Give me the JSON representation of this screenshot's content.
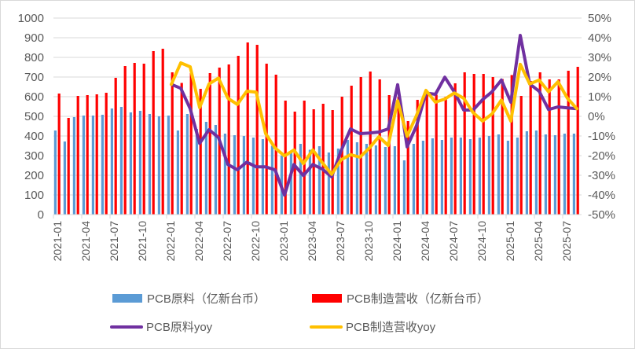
{
  "chart_data": {
    "type": "bar+line",
    "title": "",
    "x": [
      "2021-01",
      "2021-02",
      "2021-03",
      "2021-04",
      "2021-05",
      "2021-06",
      "2021-07",
      "2021-08",
      "2021-09",
      "2021-10",
      "2021-11",
      "2021-12",
      "2022-01",
      "2022-02",
      "2022-03",
      "2022-04",
      "2022-05",
      "2022-06",
      "2022-07",
      "2022-08",
      "2022-09",
      "2022-10",
      "2022-11",
      "2022-12",
      "2023-01",
      "2023-02",
      "2023-03",
      "2023-04",
      "2023-05",
      "2023-06",
      "2023-07",
      "2023-08",
      "2023-09",
      "2023-10",
      "2023-11",
      "2023-12",
      "2024-01",
      "2024-02",
      "2024-03",
      "2024-04",
      "2024-05",
      "2024-06",
      "2024-07",
      "2024-08",
      "2024-09",
      "2024-10",
      "2024-11",
      "2024-12",
      "2025-01",
      "2025-02",
      "2025-03",
      "2025-04",
      "2025-05",
      "2025-06",
      "2025-07",
      "2025-08"
    ],
    "x_tick_labels": [
      "2021-01",
      "2021-04",
      "2021-07",
      "2021-10",
      "2022-01",
      "2022-04",
      "2022-07",
      "2022-10",
      "2023-01",
      "2023-04",
      "2023-07",
      "2023-10",
      "2024-01",
      "2024-04",
      "2024-07",
      "2024-10",
      "2025-01",
      "2025-04",
      "2025-07"
    ],
    "y_left": {
      "range": [
        0,
        1000
      ],
      "ticks": [
        "0",
        "100",
        "200",
        "300",
        "400",
        "500",
        "600",
        "700",
        "800",
        "900",
        "1000"
      ]
    },
    "y_right": {
      "range": [
        -50,
        50
      ],
      "ticks": [
        "-50%",
        "-40%",
        "-30%",
        "-20%",
        "-10%",
        "0%",
        "10%",
        "20%",
        "30%",
        "40%",
        "50%"
      ]
    },
    "grid": true,
    "legend_position": "bottom",
    "series": [
      {
        "name": "PCB原料（亿新台币）",
        "kind": "bar",
        "axis": "left",
        "color": "#5b9bd5",
        "values": [
          428,
          372,
          496,
          504,
          504,
          508,
          540,
          548,
          520,
          528,
          512,
          500,
          504,
          428,
          512,
          436,
          472,
          456,
          412,
          404,
          400,
          392,
          384,
          350,
          300,
          320,
          360,
          330,
          348,
          316,
          336,
          380,
          368,
          360,
          352,
          344,
          348,
          276,
          360,
          376,
          388,
          380,
          392,
          392,
          384,
          392,
          400,
          408,
          376,
          392,
          424,
          428,
          408,
          404,
          412,
          412
        ]
      },
      {
        "name": "PCB制造营收（亿新台币）",
        "kind": "bar",
        "axis": "left",
        "color": "#ff0000",
        "values": [
          616,
          492,
          604,
          608,
          612,
          620,
          696,
          756,
          772,
          768,
          832,
          844,
          724,
          670,
          720,
          640,
          720,
          748,
          764,
          808,
          876,
          864,
          768,
          712,
          580,
          524,
          580,
          536,
          564,
          532,
          600,
          656,
          700,
          728,
          688,
          608,
          600,
          476,
          584,
          616,
          610,
          600,
          668,
          724,
          716,
          716,
          700,
          690,
          710,
          604,
          680,
          724,
          688,
          688,
          732,
          752
        ]
      },
      {
        "name": "PCB原料yoy",
        "kind": "line",
        "axis": "right",
        "color": "#7030a0",
        "values": [
          null,
          null,
          null,
          null,
          null,
          null,
          null,
          null,
          null,
          null,
          null,
          null,
          16.3,
          14.3,
          3.9,
          -13.7,
          -6.8,
          -10.8,
          -24.5,
          -27.2,
          -23.3,
          -25.7,
          -25.7,
          -27.2,
          -40.1,
          -24.5,
          -30.1,
          -24.5,
          -26.8,
          -30.8,
          -17.5,
          -6.4,
          -8.8,
          -8.5,
          -8.0,
          -6.4,
          16.1,
          -15.5,
          -4.8,
          11.9,
          11.2,
          19.9,
          12.5,
          3.2,
          3.2,
          8.5,
          12.5,
          18.5,
          7.2,
          41.2,
          16.5,
          12.8,
          3.5,
          4.8,
          4.3,
          3.9
        ]
      },
      {
        "name": "PCB制造营收yoy",
        "kind": "line",
        "axis": "right",
        "color": "#ffc000",
        "values": [
          null,
          null,
          null,
          null,
          null,
          null,
          null,
          null,
          null,
          null,
          null,
          null,
          16.3,
          27.2,
          25.2,
          4.5,
          16.5,
          19.5,
          9.2,
          6.1,
          12.8,
          12.3,
          -8.8,
          -16.1,
          -20.1,
          -17.1,
          -24.1,
          -17.1,
          -23.5,
          -29.5,
          -22.1,
          -19.5,
          -20.8,
          -16.1,
          -10.4,
          -14.8,
          7.9,
          -10.1,
          0.5,
          13.2,
          7.2,
          8.8,
          11.9,
          9.2,
          1.9,
          -2.4,
          1.2,
          8.3,
          -2.4,
          26.5,
          16.5,
          18.5,
          12.5,
          17.6,
          9.2,
          3.9
        ]
      }
    ]
  }
}
